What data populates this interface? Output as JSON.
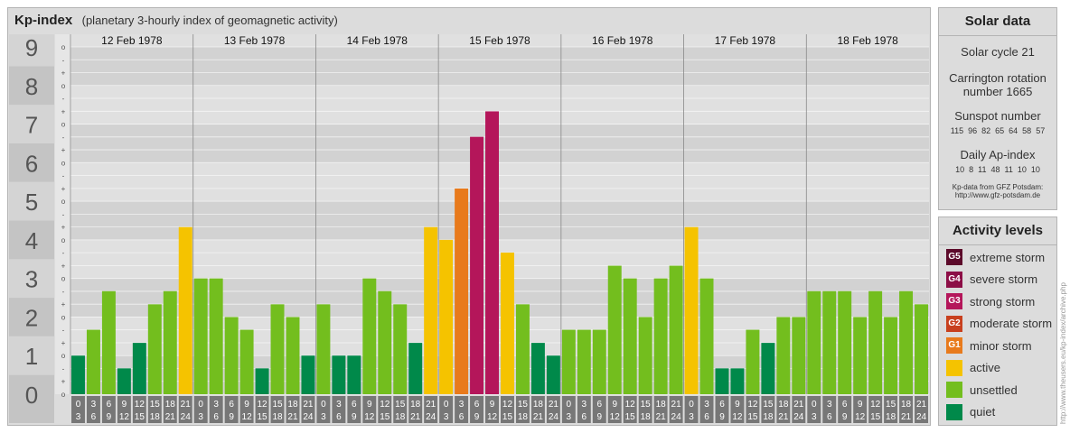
{
  "header": {
    "title": "Kp-index",
    "subtitle": "(planetary 3-hourly index of geomagnetic activity)"
  },
  "chart_data": {
    "type": "bar",
    "y_ticks": [
      "0",
      "1",
      "2",
      "3",
      "4",
      "5",
      "6",
      "7",
      "8",
      "9"
    ],
    "minor_tick_labels": [
      "+",
      "o",
      "-"
    ],
    "ylim": [
      0,
      9
    ],
    "days": [
      "12 Feb 1978",
      "13 Feb 1978",
      "14 Feb 1978",
      "15 Feb 1978",
      "16 Feb 1978",
      "17 Feb 1978",
      "18 Feb 1978"
    ],
    "hour_starts": [
      "0",
      "3",
      "6",
      "9",
      "12",
      "15",
      "18",
      "21"
    ],
    "hour_ends": [
      "3",
      "6",
      "9",
      "12",
      "15",
      "18",
      "21",
      "24"
    ],
    "values": [
      [
        1.0,
        1.67,
        2.67,
        0.67,
        1.33,
        2.33,
        2.67,
        4.33
      ],
      [
        3.0,
        3.0,
        2.0,
        1.67,
        0.67,
        2.33,
        2.0,
        1.0
      ],
      [
        2.33,
        1.0,
        1.0,
        3.0,
        2.67,
        2.33,
        1.33,
        4.33
      ],
      [
        4.0,
        5.33,
        6.67,
        7.33,
        3.67,
        2.33,
        1.33,
        1.0
      ],
      [
        1.67,
        1.67,
        1.67,
        3.33,
        3.0,
        2.0,
        3.0,
        3.33
      ],
      [
        4.33,
        3.0,
        0.67,
        0.67,
        1.67,
        1.33,
        2.0,
        2.0
      ],
      [
        2.67,
        2.67,
        2.67,
        2.0,
        2.67,
        2.0,
        2.67,
        2.33
      ]
    ],
    "colors": {
      "quiet": "#00894a",
      "unsettled": "#73be1e",
      "active": "#f5c300",
      "minor": "#e87a1c",
      "moderate": "#c8401e",
      "strong": "#b4165a",
      "severe": "#8c0e46",
      "extreme": "#5c0a2a"
    },
    "grid": true
  },
  "solar": {
    "title": "Solar data",
    "cycle": "Solar cycle 21",
    "carrington_line1": "Carrington rotation",
    "carrington_line2": "number 1665",
    "sunspot_label": "Sunspot number",
    "sunspot_values": "115  96  82  65  64  58  57",
    "ap_label": "Daily Ap-index",
    "ap_values": "10  8  11  48  11  10  10",
    "source_line1": "Kp-data from GFZ Potsdam:",
    "source_line2": "http://www.gfz-potsdam.de"
  },
  "levels": {
    "title": "Activity levels",
    "items": [
      {
        "code": "G5",
        "label": "extreme storm",
        "color": "#5c0a2a"
      },
      {
        "code": "G4",
        "label": "severe storm",
        "color": "#8c0e46"
      },
      {
        "code": "G3",
        "label": "strong storm",
        "color": "#b4165a"
      },
      {
        "code": "G2",
        "label": "moderate storm",
        "color": "#c8401e"
      },
      {
        "code": "G1",
        "label": "minor storm",
        "color": "#e87a1c"
      },
      {
        "code": "",
        "label": "active",
        "color": "#f5c300"
      },
      {
        "code": "",
        "label": "unsettled",
        "color": "#73be1e"
      },
      {
        "code": "",
        "label": "quiet",
        "color": "#00894a"
      }
    ]
  },
  "watermark": "http://www.theusers.eu/kp-index/archive.php"
}
